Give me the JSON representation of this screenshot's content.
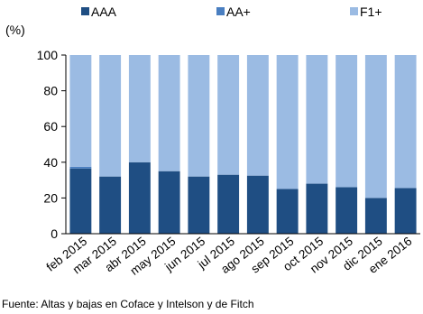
{
  "chart_data": {
    "type": "bar",
    "stacked": true,
    "ylabel": "(%)",
    "ylim": [
      0,
      100
    ],
    "yticks": [
      0,
      20,
      40,
      60,
      80,
      100
    ],
    "grid": false,
    "legend_position": "top",
    "categories": [
      "feb 2015",
      "mar 2015",
      "abr 2015",
      "may 2015",
      "jun 2015",
      "jul 2015",
      "ago 2015",
      "sep 2015",
      "oct 2015",
      "nov 2015",
      "dic 2015",
      "ene 2016"
    ],
    "series": [
      {
        "name": "AAA",
        "color": "#1f4e83",
        "values": [
          36.5,
          32,
          40,
          35,
          32,
          33,
          32.5,
          25,
          28,
          26,
          20,
          25.5
        ]
      },
      {
        "name": "AA+",
        "color": "#4a7fc1",
        "values": [
          1,
          0,
          0,
          0,
          0,
          0,
          0,
          0,
          0,
          0,
          0,
          0
        ]
      },
      {
        "name": "F1+",
        "color": "#9bbbe3",
        "values": [
          62.5,
          68,
          60,
          65,
          68,
          67,
          67.5,
          75,
          72,
          74,
          80,
          74.5
        ]
      }
    ],
    "footer_text": "Fuente: Altas y bajas en Coface y Intelson y de Fitch"
  }
}
